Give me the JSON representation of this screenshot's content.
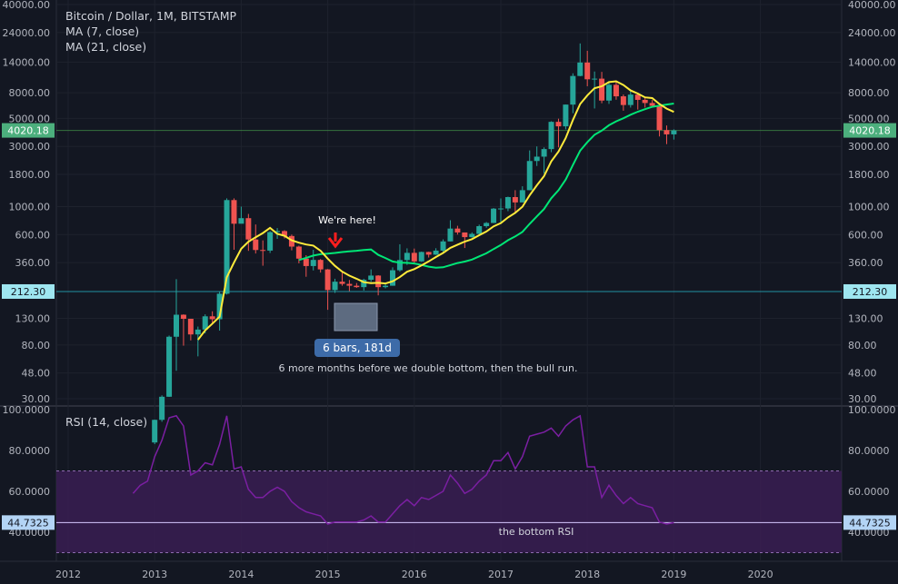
{
  "header": {
    "symbol": "Bitcoin / Dollar, 1M, BITSTAMP",
    "ma7": "MA (7, close)",
    "ma21": "MA (21, close)",
    "rsi": "RSI (14, close)"
  },
  "colors": {
    "background": "#131722",
    "up": "#26a69a",
    "down": "#ef5350",
    "ma7": "#ffeb3b",
    "ma21": "#00e676",
    "rsi": "#7b1fa2",
    "rsi_band": "#3a1d52",
    "price_line": "#4caf50",
    "support_line": "#26c6da"
  },
  "annotations": {
    "we_here": "We're here!",
    "bars": "6 bars, 181d",
    "note": "6 more months before we double bottom, then the bull run.",
    "bottom_rsi": "the bottom RSI"
  },
  "chart_data": [
    {
      "type": "candlestick",
      "title": "Bitcoin / Dollar, 1M, BITSTAMP",
      "scale": "log",
      "y_ticks": [
        "30.00",
        "48.00",
        "80.00",
        "130.00",
        "212.30",
        "360.00",
        "600.00",
        "1000.00",
        "1800.00",
        "3000.00",
        "4020.18",
        "5000.00",
        "8000.00",
        "14000.00",
        "24000.00",
        "40000.00"
      ],
      "y_tick_values": [
        30,
        48,
        80,
        130,
        212.3,
        360,
        600,
        1000,
        1800,
        3000,
        4020.18,
        5000,
        8000,
        14000,
        24000,
        40000
      ],
      "x_ticks": [
        "2012",
        "2013",
        "2014",
        "2015",
        "2016",
        "2017",
        "2018",
        "2019",
        "2020"
      ],
      "last_price": "4020.18",
      "support_level": "212.30",
      "candles": [
        {
          "t": "2013-01",
          "o": 13.5,
          "h": 20.5,
          "l": 13.1,
          "c": 20.4
        },
        {
          "t": "2013-02",
          "o": 20.4,
          "h": 31.9,
          "l": 19.7,
          "c": 31.1
        },
        {
          "t": "2013-03",
          "o": 31.1,
          "h": 95,
          "l": 31,
          "c": 93
        },
        {
          "t": "2013-04",
          "o": 93,
          "h": 266,
          "l": 50,
          "c": 139
        },
        {
          "t": "2013-05",
          "o": 139,
          "h": 140,
          "l": 79,
          "c": 129
        },
        {
          "t": "2013-06",
          "o": 129,
          "h": 129,
          "l": 87,
          "c": 97
        },
        {
          "t": "2013-07",
          "o": 97,
          "h": 112,
          "l": 65,
          "c": 106
        },
        {
          "t": "2013-08",
          "o": 106,
          "h": 140,
          "l": 99,
          "c": 135
        },
        {
          "t": "2013-09",
          "o": 135,
          "h": 148,
          "l": 120,
          "c": 128
        },
        {
          "t": "2013-10",
          "o": 128,
          "h": 212,
          "l": 104,
          "c": 204
        },
        {
          "t": "2013-11",
          "o": 204,
          "h": 1163,
          "l": 201,
          "c": 1127
        },
        {
          "t": "2013-12",
          "o": 1127,
          "h": 1163,
          "l": 455,
          "c": 732
        },
        {
          "t": "2014-01",
          "o": 732,
          "h": 1000,
          "l": 740,
          "c": 810
        },
        {
          "t": "2014-02",
          "o": 810,
          "h": 875,
          "l": 446,
          "c": 549
        },
        {
          "t": "2014-03",
          "o": 549,
          "h": 722,
          "l": 425,
          "c": 453
        },
        {
          "t": "2014-04",
          "o": 453,
          "h": 540,
          "l": 340,
          "c": 448
        },
        {
          "t": "2014-05",
          "o": 448,
          "h": 640,
          "l": 429,
          "c": 628
        },
        {
          "t": "2014-06",
          "o": 628,
          "h": 676,
          "l": 555,
          "c": 640
        },
        {
          "t": "2014-07",
          "o": 640,
          "h": 650,
          "l": 560,
          "c": 585
        },
        {
          "t": "2014-08",
          "o": 585,
          "h": 600,
          "l": 450,
          "c": 482
        },
        {
          "t": "2014-09",
          "o": 482,
          "h": 490,
          "l": 355,
          "c": 387
        },
        {
          "t": "2014-10",
          "o": 387,
          "h": 412,
          "l": 278,
          "c": 338
        },
        {
          "t": "2014-11",
          "o": 338,
          "h": 455,
          "l": 312,
          "c": 378
        },
        {
          "t": "2014-12",
          "o": 378,
          "h": 384,
          "l": 300,
          "c": 318
        },
        {
          "t": "2015-01",
          "o": 318,
          "h": 320,
          "l": 152,
          "c": 218
        },
        {
          "t": "2015-02",
          "o": 218,
          "h": 268,
          "l": 207,
          "c": 254
        },
        {
          "t": "2015-03",
          "o": 254,
          "h": 300,
          "l": 236,
          "c": 244
        },
        {
          "t": "2015-04",
          "o": 244,
          "h": 262,
          "l": 214,
          "c": 236
        },
        {
          "t": "2015-05",
          "o": 236,
          "h": 248,
          "l": 227,
          "c": 230
        },
        {
          "t": "2015-06",
          "o": 230,
          "h": 268,
          "l": 216,
          "c": 263
        },
        {
          "t": "2015-07",
          "o": 263,
          "h": 318,
          "l": 253,
          "c": 284
        },
        {
          "t": "2015-08",
          "o": 284,
          "h": 286,
          "l": 198,
          "c": 230
        },
        {
          "t": "2015-09",
          "o": 230,
          "h": 245,
          "l": 225,
          "c": 236
        },
        {
          "t": "2015-10",
          "o": 236,
          "h": 330,
          "l": 236,
          "c": 313
        },
        {
          "t": "2015-11",
          "o": 313,
          "h": 503,
          "l": 305,
          "c": 377
        },
        {
          "t": "2015-12",
          "o": 377,
          "h": 467,
          "l": 345,
          "c": 430
        },
        {
          "t": "2016-01",
          "o": 430,
          "h": 465,
          "l": 350,
          "c": 368
        },
        {
          "t": "2016-02",
          "o": 368,
          "h": 440,
          "l": 365,
          "c": 437
        },
        {
          "t": "2016-03",
          "o": 437,
          "h": 439,
          "l": 395,
          "c": 416
        },
        {
          "t": "2016-04",
          "o": 416,
          "h": 468,
          "l": 414,
          "c": 448
        },
        {
          "t": "2016-05",
          "o": 448,
          "h": 550,
          "l": 435,
          "c": 530
        },
        {
          "t": "2016-06",
          "o": 530,
          "h": 780,
          "l": 530,
          "c": 670
        },
        {
          "t": "2016-07",
          "o": 670,
          "h": 705,
          "l": 600,
          "c": 624
        },
        {
          "t": "2016-08",
          "o": 624,
          "h": 624,
          "l": 470,
          "c": 573
        },
        {
          "t": "2016-09",
          "o": 573,
          "h": 625,
          "l": 568,
          "c": 608
        },
        {
          "t": "2016-10",
          "o": 608,
          "h": 720,
          "l": 605,
          "c": 700
        },
        {
          "t": "2016-11",
          "o": 700,
          "h": 755,
          "l": 680,
          "c": 742
        },
        {
          "t": "2016-12",
          "o": 742,
          "h": 975,
          "l": 740,
          "c": 964
        },
        {
          "t": "2017-01",
          "o": 964,
          "h": 1160,
          "l": 750,
          "c": 967
        },
        {
          "t": "2017-02",
          "o": 967,
          "h": 1200,
          "l": 920,
          "c": 1190
        },
        {
          "t": "2017-03",
          "o": 1190,
          "h": 1350,
          "l": 890,
          "c": 1080
        },
        {
          "t": "2017-04",
          "o": 1080,
          "h": 1450,
          "l": 1080,
          "c": 1350
        },
        {
          "t": "2017-05",
          "o": 1350,
          "h": 2790,
          "l": 1350,
          "c": 2300
        },
        {
          "t": "2017-06",
          "o": 2300,
          "h": 3000,
          "l": 2100,
          "c": 2490
        },
        {
          "t": "2017-07",
          "o": 2490,
          "h": 2950,
          "l": 1830,
          "c": 2860
        },
        {
          "t": "2017-08",
          "o": 2860,
          "h": 4750,
          "l": 2700,
          "c": 4700
        },
        {
          "t": "2017-09",
          "o": 4700,
          "h": 4980,
          "l": 2950,
          "c": 4330
        },
        {
          "t": "2017-10",
          "o": 4330,
          "h": 6450,
          "l": 4100,
          "c": 6440
        },
        {
          "t": "2017-11",
          "o": 6440,
          "h": 11400,
          "l": 5500,
          "c": 10860
        },
        {
          "t": "2017-12",
          "o": 10860,
          "h": 19666,
          "l": 10800,
          "c": 13880
        },
        {
          "t": "2018-01",
          "o": 13880,
          "h": 17200,
          "l": 9000,
          "c": 10220
        },
        {
          "t": "2018-02",
          "o": 10220,
          "h": 11780,
          "l": 6000,
          "c": 10340
        },
        {
          "t": "2018-03",
          "o": 10340,
          "h": 11700,
          "l": 6600,
          "c": 6930
        },
        {
          "t": "2018-04",
          "o": 6930,
          "h": 9750,
          "l": 6520,
          "c": 9240
        },
        {
          "t": "2018-05",
          "o": 9240,
          "h": 9990,
          "l": 7040,
          "c": 7490
        },
        {
          "t": "2018-06",
          "o": 7490,
          "h": 7750,
          "l": 5760,
          "c": 6390
        },
        {
          "t": "2018-07",
          "o": 6390,
          "h": 8500,
          "l": 6100,
          "c": 7730
        },
        {
          "t": "2018-08",
          "o": 7730,
          "h": 7760,
          "l": 5880,
          "c": 7020
        },
        {
          "t": "2018-09",
          "o": 7020,
          "h": 7400,
          "l": 6100,
          "c": 6630
        },
        {
          "t": "2018-10",
          "o": 6630,
          "h": 7000,
          "l": 6200,
          "c": 6300
        },
        {
          "t": "2018-11",
          "o": 6300,
          "h": 6550,
          "l": 3600,
          "c": 4040
        },
        {
          "t": "2018-12",
          "o": 4040,
          "h": 4400,
          "l": 3130,
          "c": 3740
        },
        {
          "t": "2019-01",
          "o": 3740,
          "h": 4100,
          "l": 3400,
          "c": 4020.18
        }
      ]
    },
    {
      "type": "line",
      "title": "RSI (14, close)",
      "y_ticks": [
        "40.0000",
        "60.0000",
        "80.0000",
        "100.0000"
      ],
      "y_tick_values": [
        40,
        60,
        80,
        100
      ],
      "band": [
        30,
        70
      ],
      "last_value": "44.7325",
      "series": [
        {
          "values": [
            {
              "t": "2012-10",
              "v": 59
            },
            {
              "t": "2012-11",
              "v": 63
            },
            {
              "t": "2012-12",
              "v": 65
            },
            {
              "t": "2013-01",
              "v": 77
            },
            {
              "t": "2013-02",
              "v": 85
            },
            {
              "t": "2013-03",
              "v": 96
            },
            {
              "t": "2013-04",
              "v": 97
            },
            {
              "t": "2013-05",
              "v": 92
            },
            {
              "t": "2013-06",
              "v": 68
            },
            {
              "t": "2013-07",
              "v": 70
            },
            {
              "t": "2013-08",
              "v": 74
            },
            {
              "t": "2013-09",
              "v": 73
            },
            {
              "t": "2013-10",
              "v": 83
            },
            {
              "t": "2013-11",
              "v": 97
            },
            {
              "t": "2013-12",
              "v": 71
            },
            {
              "t": "2014-01",
              "v": 72
            },
            {
              "t": "2014-02",
              "v": 61
            },
            {
              "t": "2014-03",
              "v": 57
            },
            {
              "t": "2014-04",
              "v": 57
            },
            {
              "t": "2014-05",
              "v": 60
            },
            {
              "t": "2014-06",
              "v": 62
            },
            {
              "t": "2014-07",
              "v": 60
            },
            {
              "t": "2014-08",
              "v": 55
            },
            {
              "t": "2014-09",
              "v": 52
            },
            {
              "t": "2014-10",
              "v": 50
            },
            {
              "t": "2014-11",
              "v": 49
            },
            {
              "t": "2014-12",
              "v": 48
            },
            {
              "t": "2015-01",
              "v": 44
            },
            {
              "t": "2015-02",
              "v": 45
            },
            {
              "t": "2015-03",
              "v": 45
            },
            {
              "t": "2015-04",
              "v": 45
            },
            {
              "t": "2015-05",
              "v": 45
            },
            {
              "t": "2015-06",
              "v": 46
            },
            {
              "t": "2015-07",
              "v": 48
            },
            {
              "t": "2015-08",
              "v": 45
            },
            {
              "t": "2015-09",
              "v": 45
            },
            {
              "t": "2015-10",
              "v": 49
            },
            {
              "t": "2015-11",
              "v": 53
            },
            {
              "t": "2015-12",
              "v": 56
            },
            {
              "t": "2016-01",
              "v": 53
            },
            {
              "t": "2016-02",
              "v": 57
            },
            {
              "t": "2016-03",
              "v": 56
            },
            {
              "t": "2016-04",
              "v": 58
            },
            {
              "t": "2016-05",
              "v": 60
            },
            {
              "t": "2016-06",
              "v": 68
            },
            {
              "t": "2016-07",
              "v": 64
            },
            {
              "t": "2016-08",
              "v": 59
            },
            {
              "t": "2016-09",
              "v": 61
            },
            {
              "t": "2016-10",
              "v": 65
            },
            {
              "t": "2016-11",
              "v": 68
            },
            {
              "t": "2016-12",
              "v": 75
            },
            {
              "t": "2017-01",
              "v": 75
            },
            {
              "t": "2017-02",
              "v": 79
            },
            {
              "t": "2017-03",
              "v": 71
            },
            {
              "t": "2017-04",
              "v": 77
            },
            {
              "t": "2017-05",
              "v": 87
            },
            {
              "t": "2017-06",
              "v": 88
            },
            {
              "t": "2017-07",
              "v": 89
            },
            {
              "t": "2017-08",
              "v": 91
            },
            {
              "t": "2017-09",
              "v": 87
            },
            {
              "t": "2017-10",
              "v": 92
            },
            {
              "t": "2017-11",
              "v": 95
            },
            {
              "t": "2017-12",
              "v": 97
            },
            {
              "t": "2018-01",
              "v": 72
            },
            {
              "t": "2018-02",
              "v": 72
            },
            {
              "t": "2018-03",
              "v": 57
            },
            {
              "t": "2018-04",
              "v": 63
            },
            {
              "t": "2018-05",
              "v": 58
            },
            {
              "t": "2018-06",
              "v": 54
            },
            {
              "t": "2018-07",
              "v": 57
            },
            {
              "t": "2018-08",
              "v": 54
            },
            {
              "t": "2018-09",
              "v": 53
            },
            {
              "t": "2018-10",
              "v": 52
            },
            {
              "t": "2018-11",
              "v": 45
            },
            {
              "t": "2018-12",
              "v": 44
            },
            {
              "t": "2019-01",
              "v": 44.7325
            }
          ]
        }
      ]
    }
  ]
}
